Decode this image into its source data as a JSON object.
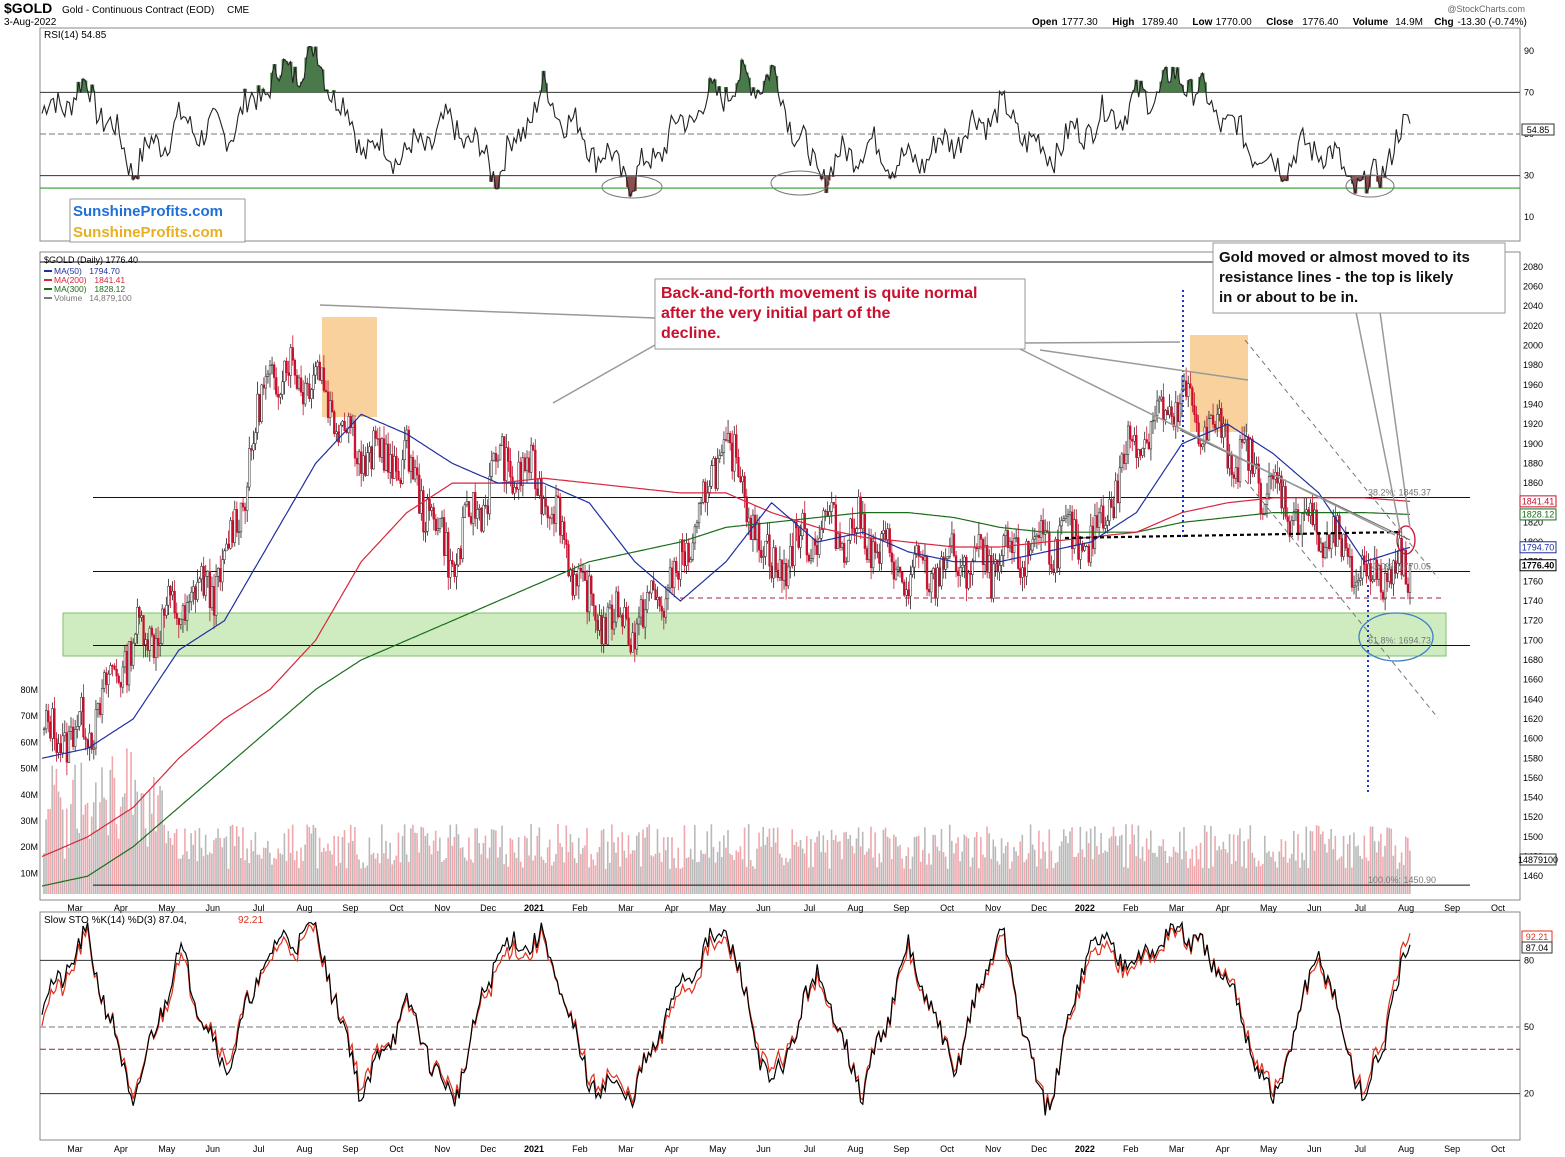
{
  "header": {
    "symbol": "$GOLD",
    "description": "Gold - Continuous Contract (EOD)",
    "exchange": "CME",
    "date": "3-Aug-2022",
    "watermark": "@StockCharts.com",
    "ohlc": [
      {
        "label": "Open",
        "value": "1777.30"
      },
      {
        "label": "High",
        "value": "1789.40"
      },
      {
        "label": "Low",
        "value": "1770.00"
      },
      {
        "label": "Close",
        "value": "1776.40"
      },
      {
        "label": "Volume",
        "value": "14.9M"
      },
      {
        "label": "Chg",
        "value": "-13.30 (-0.74%)"
      }
    ]
  },
  "logo": {
    "text1": "SunshineProfits.com",
    "text2": "SunshineProfits.com"
  },
  "colors": {
    "ma50": "#1f2fa0",
    "ma200": "#d7263d",
    "ma300": "#1a6e1a",
    "rsi_line": "#222222",
    "annotation_red": "#c8102e",
    "support_zone": "#a8dc8c",
    "top_zone": "#f6c27b",
    "down_candle": "#c8102e",
    "stoch_k": "#000000",
    "stoch_d": "#e0301e"
  },
  "chart_data": [
    {
      "type": "line",
      "panel": "RSI",
      "title": "RSI(14) 54.85",
      "yticks": [
        90,
        70,
        50,
        30,
        10
      ],
      "ylim": [
        0,
        100
      ],
      "last_value_label": "54.85",
      "reference_lines": [
        70,
        50,
        30
      ],
      "green_line_value": 24,
      "x": [
        "2020-02",
        "2020-03",
        "2020-04",
        "2020-05",
        "2020-06",
        "2020-07",
        "2020-08",
        "2020-09",
        "2020-10",
        "2020-11",
        "2020-12",
        "2021-01",
        "2021-02",
        "2021-03",
        "2021-04",
        "2021-05",
        "2021-06",
        "2021-07",
        "2021-08",
        "2021-09",
        "2021-10",
        "2021-11",
        "2021-12",
        "2022-01",
        "2022-02",
        "2022-03",
        "2022-04",
        "2022-05",
        "2022-06",
        "2022-07",
        "2022-08"
      ],
      "values": [
        60,
        72,
        35,
        55,
        50,
        75,
        88,
        45,
        40,
        55,
        32,
        70,
        45,
        28,
        55,
        72,
        78,
        30,
        45,
        35,
        48,
        62,
        40,
        55,
        65,
        78,
        55,
        35,
        45,
        22,
        55
      ]
    },
    {
      "type": "candlestick",
      "panel": "price",
      "title": "$GOLD (Daily) 1776.40",
      "legend": [
        {
          "name": "MA(50)",
          "value": "1794.70"
        },
        {
          "name": "MA(200)",
          "value": "1841.41"
        },
        {
          "name": "MA(300)",
          "value": "1828.12"
        },
        {
          "name": "Volume",
          "value": "14,879,100"
        }
      ],
      "yticks": [
        2080,
        2060,
        2040,
        2020,
        2000,
        1980,
        1960,
        1940,
        1920,
        1900,
        1880,
        1860,
        1840,
        1820,
        1800,
        1780,
        1760,
        1740,
        1720,
        1700,
        1680,
        1660,
        1640,
        1620,
        1600,
        1580,
        1560,
        1540,
        1520,
        1500,
        1480,
        1460
      ],
      "ylim": [
        1450,
        2085
      ],
      "x_labels": [
        "Mar",
        "Apr",
        "May",
        "Jun",
        "Jul",
        "Aug",
        "Sep",
        "Oct",
        "Nov",
        "Dec",
        "2021",
        "Feb",
        "Mar",
        "Apr",
        "May",
        "Jun",
        "Jul",
        "Aug",
        "Sep",
        "Oct",
        "Nov",
        "Dec",
        "2022",
        "Feb",
        "Mar",
        "Apr",
        "May",
        "Jun",
        "Jul",
        "Aug",
        "Sep",
        "Oct"
      ],
      "x": [
        "2020-02",
        "2020-03",
        "2020-04",
        "2020-05",
        "2020-06",
        "2020-07",
        "2020-08",
        "2020-09",
        "2020-10",
        "2020-11",
        "2020-12",
        "2021-01",
        "2021-02",
        "2021-03",
        "2021-04",
        "2021-05",
        "2021-06",
        "2021-07",
        "2021-08",
        "2021-09",
        "2021-10",
        "2021-11",
        "2021-12",
        "2022-01",
        "2022-02",
        "2022-03",
        "2022-04",
        "2022-05",
        "2022-06",
        "2022-07",
        "2022-08"
      ],
      "close": [
        1600,
        1610,
        1700,
        1730,
        1770,
        1975,
        1970,
        1890,
        1880,
        1780,
        1880,
        1860,
        1730,
        1715,
        1770,
        1905,
        1770,
        1815,
        1810,
        1760,
        1780,
        1775,
        1805,
        1795,
        1910,
        1940,
        1900,
        1850,
        1810,
        1765,
        1776.4
      ],
      "ma50": [
        1580,
        1590,
        1620,
        1690,
        1720,
        1800,
        1880,
        1930,
        1910,
        1880,
        1860,
        1860,
        1840,
        1780,
        1740,
        1780,
        1840,
        1800,
        1810,
        1790,
        1780,
        1780,
        1790,
        1800,
        1830,
        1900,
        1920,
        1890,
        1850,
        1780,
        1794.7
      ],
      "ma200": [
        1480,
        1500,
        1530,
        1580,
        1620,
        1650,
        1700,
        1780,
        1830,
        1860,
        1860,
        1865,
        1860,
        1855,
        1850,
        1850,
        1830,
        1815,
        1805,
        1800,
        1795,
        1795,
        1800,
        1805,
        1810,
        1830,
        1840,
        1845,
        1845,
        1845,
        1841.41
      ],
      "ma300": [
        1450,
        1460,
        1490,
        1530,
        1570,
        1610,
        1650,
        1680,
        1700,
        1720,
        1740,
        1760,
        1780,
        1790,
        1800,
        1815,
        1820,
        1825,
        1830,
        1830,
        1825,
        1815,
        1810,
        1810,
        1810,
        1820,
        1825,
        1830,
        1830,
        1830,
        1828.12
      ],
      "volume_axis": [
        "80M",
        "70M",
        "60M",
        "50M",
        "40M",
        "30M",
        "20M",
        "10M"
      ],
      "volume_last_label": "14879100",
      "price_labels": [
        {
          "text": "1841.41",
          "value": 1841.41
        },
        {
          "text": "1828.12",
          "value": 1828.12
        },
        {
          "text": "1794.70",
          "value": 1794.7
        },
        {
          "text": "1776.40",
          "value": 1776.4
        }
      ],
      "fib_labels": [
        {
          "text": "38.2%: 1845.37",
          "value": 1845.37
        },
        {
          "text": "50.0%: 1770.05",
          "value": 1770.05
        },
        {
          "text": "61.8%: 1694.73",
          "value": 1694.73
        },
        {
          "text": "100.0%: 1450.90",
          "value": 1450.9
        }
      ],
      "horizontal_lines": [
        2085,
        1845.37,
        1770.05,
        1694.73,
        1450.9
      ],
      "support_zone": [
        1663,
        1707
      ],
      "annotations": [
        "Back-and-forth movement is quite normal after the very initial part of the decline.",
        "Gold moved or almost moved to its resistance lines - the top is likely in or about to be in."
      ]
    },
    {
      "type": "line",
      "panel": "stochastic",
      "title": "Slow STO %K(14) %D(3) 87.04,",
      "title_d": "92.21",
      "yticks": [
        80,
        50,
        20
      ],
      "ylim": [
        0,
        100
      ],
      "k_label": "87.04",
      "d_label": "92.21",
      "reference_lines": [
        80,
        50,
        40,
        20
      ],
      "x": [
        "2020-02",
        "2020-03",
        "2020-04",
        "2020-05",
        "2020-06",
        "2020-07",
        "2020-08",
        "2020-09",
        "2020-10",
        "2020-11",
        "2020-12",
        "2021-01",
        "2021-02",
        "2021-03",
        "2021-04",
        "2021-05",
        "2021-06",
        "2021-07",
        "2021-08",
        "2021-09",
        "2021-10",
        "2021-11",
        "2021-12",
        "2022-01",
        "2022-02",
        "2022-03",
        "2022-04",
        "2022-05",
        "2022-06",
        "2022-07",
        "2022-08"
      ],
      "k": [
        60,
        90,
        15,
        85,
        30,
        85,
        95,
        20,
        60,
        15,
        85,
        90,
        25,
        20,
        70,
        95,
        20,
        75,
        20,
        85,
        30,
        95,
        10,
        90,
        80,
        95,
        70,
        15,
        85,
        15,
        87.04
      ],
      "d": [
        55,
        88,
        18,
        80,
        35,
        82,
        92,
        25,
        58,
        18,
        80,
        88,
        28,
        22,
        65,
        92,
        25,
        72,
        22,
        82,
        32,
        92,
        12,
        85,
        78,
        93,
        72,
        18,
        82,
        18,
        92.21
      ]
    }
  ]
}
